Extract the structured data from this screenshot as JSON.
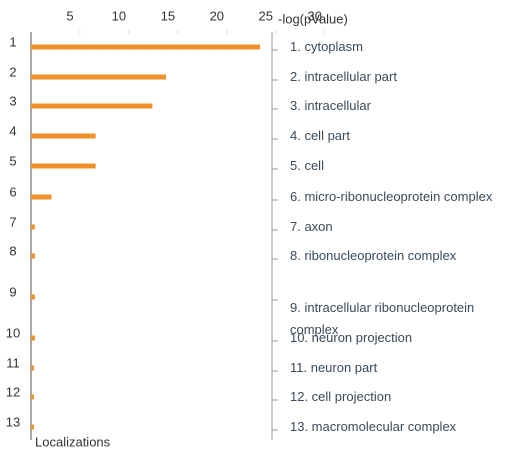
{
  "chart_data": {
    "type": "bar",
    "orientation": "horizontal",
    "x_label": "-log(pValue)",
    "y_label": "Localizations",
    "ranks": [
      1,
      2,
      3,
      4,
      5,
      6,
      7,
      8,
      9,
      10,
      11,
      12,
      13
    ],
    "categories": [
      "1. cytoplasm",
      "2. intracellular part",
      "3. intracellular",
      "4. cell part",
      "5. cell",
      "6. micro-ribonucleoprotein complex",
      "7. axon",
      "8. ribonucleoprotein complex",
      "9. intracellular ribonucleoprotein complex",
      "10. neuron projection",
      "11. neuron part",
      "12. cell projection",
      "13. macromolecular complex"
    ],
    "values": [
      23.4,
      13.8,
      12.4,
      6.6,
      6.6,
      2.1,
      0.4,
      0.4,
      0.4,
      0.4,
      0.3,
      0.3,
      0.3
    ],
    "color": "#f0902a",
    "xlim": [
      0,
      33.5
    ],
    "xticks": [
      5,
      10,
      15,
      20,
      25,
      30
    ]
  }
}
